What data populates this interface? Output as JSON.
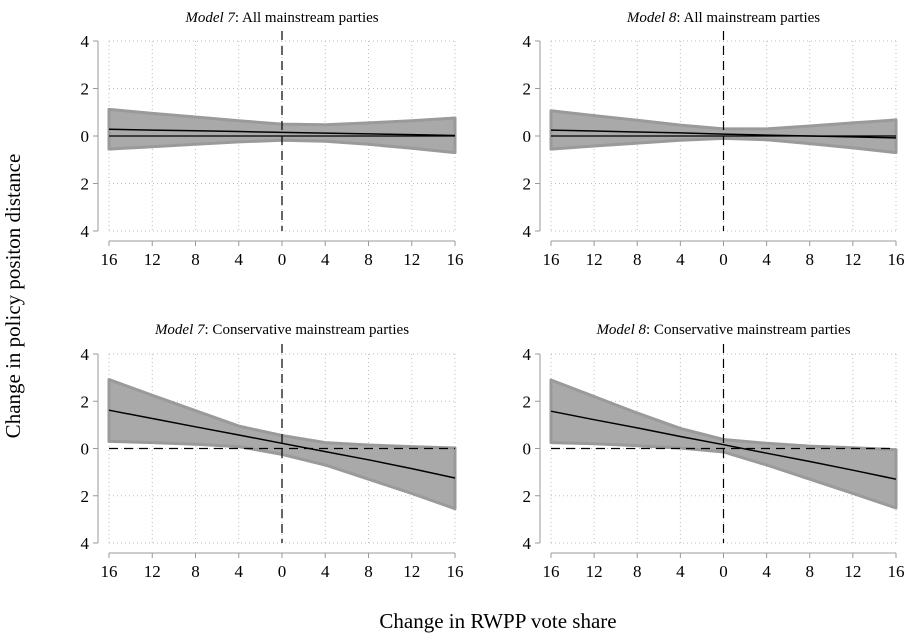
{
  "figure": {
    "ylabel": "Change in policy positon distance",
    "xlabel": "Change in RWPP vote share"
  },
  "colors": {
    "band_fill": "#a9a9a9",
    "band_stroke": "#9a9a9a",
    "line": "#000000",
    "grid": "#bdbdbd"
  },
  "chart_data": [
    {
      "type": "area",
      "title_italic": "Model 7",
      "title_rest": ": All mainstream parties",
      "x": [
        -16,
        -12,
        -8,
        -4,
        0,
        4,
        8,
        12,
        16
      ],
      "xticklabels": [
        "16",
        "12",
        "8",
        "4",
        "0",
        "4",
        "8",
        "12",
        "16"
      ],
      "yticks": [
        -4,
        -2,
        0,
        2,
        4
      ],
      "yticklabels": [
        "4",
        "2",
        "0",
        "2",
        "4"
      ],
      "xlim": [
        -16,
        16
      ],
      "ylim": [
        -4,
        4
      ],
      "hline_y": 0,
      "hline_dashed": false,
      "vline_x": 0,
      "grid": true,
      "estimate": [
        0.28,
        0.25,
        0.22,
        0.19,
        0.15,
        0.12,
        0.09,
        0.06,
        0.02
      ],
      "lower": [
        -0.55,
        -0.45,
        -0.35,
        -0.25,
        -0.18,
        -0.22,
        -0.35,
        -0.52,
        -0.7
      ],
      "upper": [
        1.12,
        0.95,
        0.8,
        0.64,
        0.5,
        0.47,
        0.55,
        0.64,
        0.76
      ]
    },
    {
      "type": "area",
      "title_italic": "Model 8",
      "title_rest": ": All mainstream parties",
      "x": [
        -16,
        -12,
        -8,
        -4,
        0,
        4,
        8,
        12,
        16
      ],
      "xticklabels": [
        "16",
        "12",
        "8",
        "4",
        "0",
        "4",
        "8",
        "12",
        "16"
      ],
      "yticks": [
        -4,
        -2,
        0,
        2,
        4
      ],
      "yticklabels": [
        "4",
        "2",
        "0",
        "2",
        "4"
      ],
      "xlim": [
        -16,
        16
      ],
      "ylim": [
        -4,
        4
      ],
      "hline_y": 0,
      "hline_dashed": false,
      "vline_x": 0,
      "grid": true,
      "estimate": [
        0.25,
        0.21,
        0.17,
        0.13,
        0.08,
        0.04,
        0.0,
        -0.04,
        -0.08
      ],
      "lower": [
        -0.55,
        -0.42,
        -0.3,
        -0.18,
        -0.1,
        -0.16,
        -0.32,
        -0.5,
        -0.7
      ],
      "upper": [
        1.06,
        0.86,
        0.66,
        0.46,
        0.3,
        0.3,
        0.42,
        0.55,
        0.68
      ]
    },
    {
      "type": "area",
      "title_italic": "Model 7",
      "title_rest": ": Conservative mainstream parties",
      "x": [
        -16,
        -12,
        -8,
        -4,
        0,
        4,
        8,
        12,
        16
      ],
      "xticklabels": [
        "16",
        "12",
        "8",
        "4",
        "0",
        "4",
        "8",
        "12",
        "16"
      ],
      "yticks": [
        -4,
        -2,
        0,
        2,
        4
      ],
      "yticklabels": [
        "4",
        "2",
        "0",
        "2",
        "4"
      ],
      "xlim": [
        -16,
        16
      ],
      "ylim": [
        -4,
        4
      ],
      "hline_y": 0,
      "hline_dashed": true,
      "vline_x": 0,
      "grid": true,
      "estimate": [
        1.62,
        1.27,
        0.92,
        0.57,
        0.22,
        -0.13,
        -0.48,
        -0.85,
        -1.25
      ],
      "lower": [
        0.3,
        0.25,
        0.18,
        0.08,
        -0.25,
        -0.7,
        -1.3,
        -1.9,
        -2.55
      ],
      "upper": [
        2.92,
        2.25,
        1.6,
        0.95,
        0.55,
        0.25,
        0.15,
        0.08,
        0.02
      ]
    },
    {
      "type": "area",
      "title_italic": "Model 8",
      "title_rest": ": Conservative mainstream parties",
      "x": [
        -16,
        -12,
        -8,
        -4,
        0,
        4,
        8,
        12,
        16
      ],
      "xticklabels": [
        "16",
        "12",
        "8",
        "4",
        "0",
        "4",
        "8",
        "12",
        "16"
      ],
      "yticks": [
        -4,
        -2,
        0,
        2,
        4
      ],
      "yticklabels": [
        "4",
        "2",
        "0",
        "2",
        "4"
      ],
      "xlim": [
        -16,
        16
      ],
      "ylim": [
        -4,
        4
      ],
      "hline_y": 0,
      "hline_dashed": true,
      "vline_x": 0,
      "grid": true,
      "estimate": [
        1.58,
        1.22,
        0.87,
        0.51,
        0.16,
        -0.2,
        -0.55,
        -0.92,
        -1.3
      ],
      "lower": [
        0.25,
        0.2,
        0.12,
        0.02,
        -0.15,
        -0.7,
        -1.3,
        -1.9,
        -2.52
      ],
      "upper": [
        2.9,
        2.2,
        1.5,
        0.85,
        0.38,
        0.22,
        0.1,
        0.03,
        -0.05
      ]
    }
  ]
}
